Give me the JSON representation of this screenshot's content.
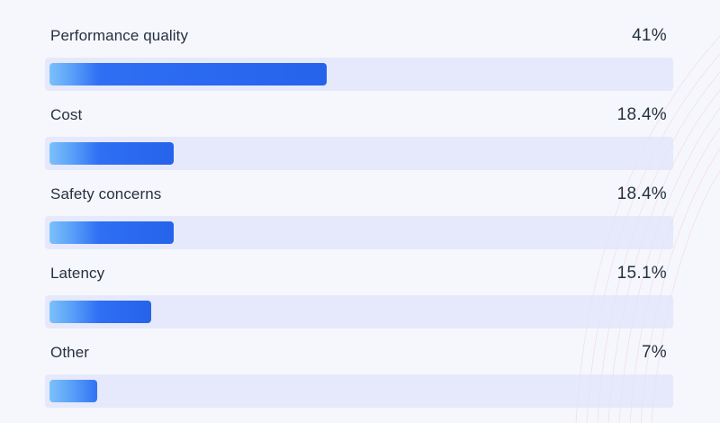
{
  "chart_data": {
    "type": "bar",
    "orientation": "horizontal",
    "categories": [
      "Performance quality",
      "Cost",
      "Safety concerns",
      "Latency",
      "Other"
    ],
    "values": [
      41,
      18.4,
      18.4,
      15.1,
      7
    ],
    "value_labels": [
      "41%",
      "18.4%",
      "18.4%",
      "15.1%",
      "7%"
    ],
    "unit": "%",
    "xlim": [
      0,
      100
    ],
    "grid": false,
    "legend": "none",
    "colors": {
      "track": "#e0e6fa",
      "bar_start": "#7cc0fb",
      "bar_end": "#2563eb",
      "text": "#263140"
    }
  }
}
